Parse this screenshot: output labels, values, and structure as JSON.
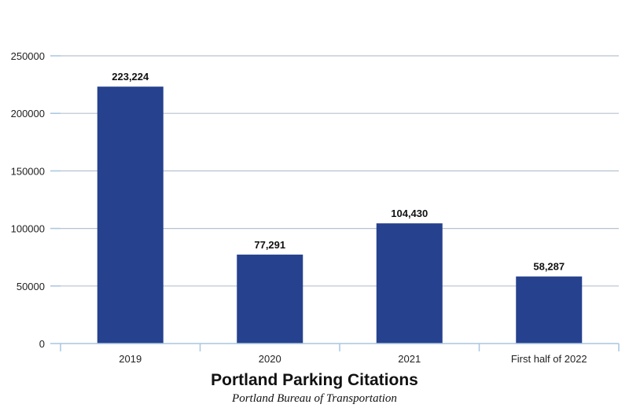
{
  "chart_data": {
    "type": "bar",
    "title": "Portland Parking Citations",
    "subtitle": "Portland Bureau of Transportation",
    "categories": [
      "2019",
      "2020",
      "2021",
      "First half of 2022"
    ],
    "values": [
      223224,
      77291,
      104430,
      58287
    ],
    "data_labels": [
      "223,224",
      "77,291",
      "104,430",
      "58,287"
    ],
    "y_ticks": [
      "0",
      "50000",
      "100000",
      "150000",
      "200000",
      "250000"
    ],
    "ylim": [
      0,
      250000
    ],
    "xlabel": "",
    "ylabel": "",
    "grid": true,
    "legend": "none",
    "colors": {
      "bar": "#26418e",
      "grid": "#b8c2cf",
      "axis": "#a8c6e0"
    }
  }
}
